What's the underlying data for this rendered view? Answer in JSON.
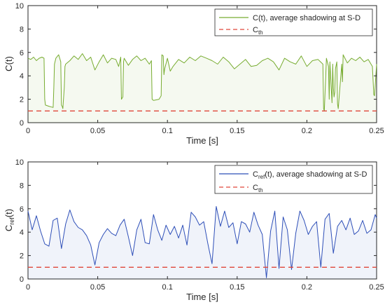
{
  "chart_data": [
    {
      "type": "line",
      "xlabel": "Time [s]",
      "ylabel": "C(t)",
      "xlim": [
        0,
        0.25
      ],
      "ylim": [
        0,
        10
      ],
      "xticks": [
        "0",
        "0.05",
        "0.1",
        "0.15",
        "0.2",
        "0.25"
      ],
      "yticks": [
        "0",
        "2",
        "4",
        "6",
        "8",
        "10"
      ],
      "grid": false,
      "legend_position": "top-right",
      "series": [
        {
          "name": "C(t), average shadowing at S-D",
          "color": "#77ac30",
          "style": "solid",
          "x": [
            0,
            0.002,
            0.004,
            0.006,
            0.008,
            0.01,
            0.0115,
            0.012,
            0.0125,
            0.015,
            0.018,
            0.0185,
            0.019,
            0.02,
            0.022,
            0.0235,
            0.024,
            0.0245,
            0.025,
            0.026,
            0.0265,
            0.027,
            0.03,
            0.033,
            0.036,
            0.039,
            0.042,
            0.045,
            0.048,
            0.051,
            0.054,
            0.057,
            0.06,
            0.063,
            0.065,
            0.0665,
            0.067,
            0.068,
            0.0685,
            0.069,
            0.072,
            0.075,
            0.078,
            0.081,
            0.084,
            0.087,
            0.0885,
            0.089,
            0.09,
            0.094,
            0.0955,
            0.096,
            0.097,
            0.0975,
            0.098,
            0.1,
            0.102,
            0.104,
            0.108,
            0.112,
            0.116,
            0.12,
            0.124,
            0.128,
            0.132,
            0.136,
            0.14,
            0.144,
            0.148,
            0.152,
            0.156,
            0.16,
            0.164,
            0.168,
            0.172,
            0.176,
            0.18,
            0.184,
            0.188,
            0.192,
            0.196,
            0.2,
            0.204,
            0.208,
            0.2115,
            0.212,
            0.2125,
            0.214,
            0.2155,
            0.216,
            0.2165,
            0.218,
            0.2185,
            0.219,
            0.2195,
            0.22,
            0.2205,
            0.2215,
            0.222,
            0.2225,
            0.225,
            0.2255,
            0.226,
            0.229,
            0.232,
            0.235,
            0.238,
            0.241,
            0.244,
            0.246,
            0.247,
            0.248,
            0.2485,
            0.25
          ],
          "y": [
            5.5,
            5.4,
            5.6,
            5.3,
            5.5,
            5.6,
            5.5,
            2.0,
            1.5,
            1.4,
            1.3,
            3.0,
            5.0,
            5.5,
            5.8,
            5.2,
            1.5,
            1.4,
            1.2,
            3.0,
            4.8,
            5.0,
            5.3,
            5.7,
            5.4,
            5.9,
            5.3,
            5.6,
            4.5,
            5.2,
            5.8,
            5.1,
            5.5,
            5.4,
            4.8,
            5.6,
            2.0,
            2.2,
            5.2,
            5.5,
            4.9,
            5.4,
            5.7,
            5.3,
            5.5,
            5.0,
            5.3,
            2.0,
            1.9,
            2.0,
            2.3,
            5.8,
            5.7,
            4.1,
            4.6,
            5.5,
            4.4,
            4.8,
            5.4,
            5.1,
            5.6,
            5.3,
            5.7,
            5.5,
            5.3,
            5.0,
            5.6,
            5.2,
            4.6,
            5.0,
            5.4,
            4.8,
            4.9,
            5.3,
            5.5,
            5.2,
            4.5,
            5.5,
            5.2,
            5.0,
            5.7,
            4.8,
            5.3,
            5.4,
            5.0,
            1.2,
            1.0,
            5.5,
            4.8,
            2.0,
            5.2,
            1.7,
            5.0,
            3.0,
            2.2,
            2.6,
            4.6,
            5.2,
            1.6,
            1.2,
            5.0,
            3.5,
            5.8,
            5.1,
            5.5,
            5.3,
            5.6,
            5.2,
            5.4,
            5.0,
            4.8,
            2.4,
            2.3,
            5.0
          ]
        },
        {
          "name": "C_th",
          "color": "#e0473b",
          "style": "dashed",
          "x": [
            0,
            0.25
          ],
          "y": [
            1,
            1
          ]
        }
      ]
    },
    {
      "type": "line",
      "xlabel": "Time [s]",
      "ylabel": "C_ref(t)",
      "xlim": [
        0,
        0.25
      ],
      "ylim": [
        0,
        10
      ],
      "xticks": [
        "0",
        "0.05",
        "0.1",
        "0.15",
        "0.2",
        "0.25"
      ],
      "yticks": [
        "0",
        "2",
        "4",
        "6",
        "8",
        "10"
      ],
      "grid": false,
      "legend_position": "top-right",
      "series": [
        {
          "name": "C_ref(t), average shadowing at S-D",
          "color": "#2e4fb8",
          "style": "solid",
          "x": [
            0,
            0.003,
            0.006,
            0.009,
            0.012,
            0.015,
            0.018,
            0.021,
            0.024,
            0.027,
            0.03,
            0.033,
            0.036,
            0.039,
            0.042,
            0.045,
            0.048,
            0.051,
            0.054,
            0.057,
            0.06,
            0.063,
            0.066,
            0.069,
            0.072,
            0.075,
            0.078,
            0.081,
            0.084,
            0.087,
            0.09,
            0.093,
            0.096,
            0.099,
            0.102,
            0.105,
            0.108,
            0.111,
            0.114,
            0.117,
            0.12,
            0.123,
            0.126,
            0.129,
            0.132,
            0.135,
            0.138,
            0.141,
            0.144,
            0.147,
            0.15,
            0.153,
            0.156,
            0.159,
            0.162,
            0.165,
            0.168,
            0.171,
            0.174,
            0.177,
            0.18,
            0.183,
            0.186,
            0.189,
            0.192,
            0.195,
            0.198,
            0.201,
            0.204,
            0.207,
            0.21,
            0.213,
            0.216,
            0.219,
            0.222,
            0.225,
            0.228,
            0.231,
            0.234,
            0.237,
            0.24,
            0.243,
            0.246,
            0.249,
            0.25
          ],
          "y": [
            5.8,
            4.2,
            5.4,
            4.1,
            3.0,
            2.8,
            5.0,
            5.2,
            2.6,
            4.7,
            5.9,
            4.9,
            4.4,
            4.2,
            3.7,
            2.9,
            1.2,
            3.1,
            3.8,
            4.3,
            3.9,
            3.7,
            4.6,
            5.1,
            3.6,
            2.0,
            4.2,
            5.1,
            3.1,
            3.0,
            5.5,
            4.2,
            3.3,
            4.6,
            3.8,
            4.5,
            3.5,
            4.6,
            2.9,
            5.7,
            5.3,
            4.6,
            4.9,
            3.0,
            1.3,
            6.2,
            4.5,
            5.8,
            4.4,
            4.8,
            3.0,
            4.9,
            4.7,
            4.0,
            5.7,
            4.6,
            3.8,
            0.1,
            4.1,
            5.8,
            0.9,
            5.3,
            4.2,
            0.8,
            3.9,
            5.8,
            5.0,
            3.8,
            4.5,
            4.9,
            1.0,
            5.1,
            5.6,
            2.2,
            4.5,
            5.0,
            4.2,
            5.2,
            3.8,
            4.1,
            5.0,
            3.9,
            4.2,
            5.5,
            5.2
          ]
        },
        {
          "name": "C_th",
          "color": "#e0473b",
          "style": "dashed",
          "x": [
            0,
            0.25
          ],
          "y": [
            1,
            1
          ]
        }
      ]
    }
  ]
}
